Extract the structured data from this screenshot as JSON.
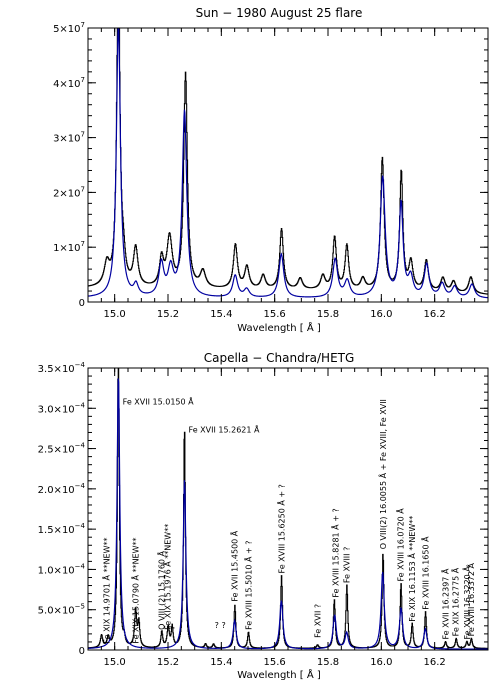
{
  "chart_data": [
    {
      "type": "line",
      "title": "Sun − 1980 August 25 flare",
      "xlabel": "Wavelength [ Å ]",
      "ylabel": "",
      "xlim": [
        14.9,
        16.4
      ],
      "ylim": [
        0,
        50000000
      ],
      "x_ticks": [
        15.0,
        15.2,
        15.4,
        15.6,
        15.8,
        16.0,
        16.2
      ],
      "x_tick_labels": [
        "15.0",
        "15.2",
        "15.4",
        "15.6",
        "15.8",
        "16.0",
        "16.2"
      ],
      "y_ticks": [
        0,
        10000000,
        20000000,
        30000000,
        40000000,
        50000000
      ],
      "y_tick_labels": [
        {
          "base": "0",
          "exp": ""
        },
        {
          "base": "1×10",
          "exp": "7"
        },
        {
          "base": "2×10",
          "exp": "7"
        },
        {
          "base": "3×10",
          "exp": "7"
        },
        {
          "base": "4×10",
          "exp": "7"
        },
        {
          "base": "5×10",
          "exp": "7"
        }
      ],
      "grid": false,
      "series": [
        {
          "color": "#000000",
          "style": "histogram",
          "baseline": [
            [
              14.9,
              2500000
            ],
            [
              15.5,
              2200000
            ],
            [
              16.1,
              2000000
            ],
            [
              16.4,
              1300000
            ]
          ],
          "peaks": [
            [
              14.97,
              4000000,
              0.012
            ],
            [
              15.013,
              60000000,
              0.007
            ],
            [
              15.032,
              4000000,
              0.008
            ],
            [
              15.078,
              7000000,
              0.01
            ],
            [
              15.175,
              5000000,
              0.009
            ],
            [
              15.205,
              9000000,
              0.012
            ],
            [
              15.265,
              39000000,
              0.008
            ],
            [
              15.33,
              3000000,
              0.012
            ],
            [
              15.452,
              8000000,
              0.009
            ],
            [
              15.495,
              4000000,
              0.01
            ],
            [
              15.556,
              2500000,
              0.01
            ],
            [
              15.625,
              11000000,
              0.008
            ],
            [
              15.695,
              2000000,
              0.01
            ],
            [
              15.78,
              2500000,
              0.01
            ],
            [
              15.824,
              9500000,
              0.008
            ],
            [
              15.87,
              8000000,
              0.008
            ],
            [
              15.93,
              2000000,
              0.01
            ],
            [
              16.003,
              24000000,
              0.008
            ],
            [
              16.074,
              21500000,
              0.007
            ],
            [
              16.11,
              5000000,
              0.009
            ],
            [
              16.168,
              5500000,
              0.009
            ],
            [
              16.23,
              2500000,
              0.01
            ],
            [
              16.27,
              2000000,
              0.01
            ],
            [
              16.335,
              3000000,
              0.01
            ]
          ]
        },
        {
          "color": "#0000a0",
          "style": "line",
          "baseline": [
            [
              14.9,
              700000
            ],
            [
              16.4,
              600000
            ]
          ],
          "peaks": [
            [
              15.014,
              50000000,
              0.009
            ],
            [
              15.08,
              2000000,
              0.01
            ],
            [
              15.175,
              6000000,
              0.011
            ],
            [
              15.21,
              5000000,
              0.012
            ],
            [
              15.262,
              34000000,
              0.01
            ],
            [
              15.452,
              4000000,
              0.011
            ],
            [
              15.495,
              1500000,
              0.012
            ],
            [
              15.625,
              8000000,
              0.011
            ],
            [
              15.827,
              7000000,
              0.011
            ],
            [
              15.872,
              3000000,
              0.012
            ],
            [
              16.005,
              22000000,
              0.011
            ],
            [
              16.074,
              17000000,
              0.009
            ],
            [
              16.11,
              3500000,
              0.011
            ],
            [
              16.17,
              6000000,
              0.011
            ],
            [
              16.228,
              2500000,
              0.012
            ],
            [
              16.275,
              2000000,
              0.012
            ],
            [
              16.34,
              2500000,
              0.012
            ]
          ]
        }
      ]
    },
    {
      "type": "line",
      "title": "Capella − Chandra/HETG",
      "xlabel": "Wavelength [ Å ]",
      "ylabel": "",
      "xlim": [
        14.9,
        16.4
      ],
      "ylim": [
        0,
        0.00035
      ],
      "x_ticks": [
        15.0,
        15.2,
        15.4,
        15.6,
        15.8,
        16.0,
        16.2
      ],
      "x_tick_labels": [
        "15.0",
        "15.2",
        "15.4",
        "15.6",
        "15.8",
        "16.0",
        "16.2"
      ],
      "y_ticks": [
        0,
        5e-05,
        0.0001,
        0.00015,
        0.0002,
        0.00025,
        0.0003,
        0.00035
      ],
      "y_tick_labels": [
        {
          "base": "0",
          "exp": ""
        },
        {
          "base": "5.0×10",
          "exp": "−5"
        },
        {
          "base": "1.0×10",
          "exp": "−4"
        },
        {
          "base": "1.5×10",
          "exp": "−4"
        },
        {
          "base": "2.0×10",
          "exp": "−4"
        },
        {
          "base": "2.5×10",
          "exp": "−4"
        },
        {
          "base": "3.0×10",
          "exp": "−4"
        },
        {
          "base": "3.5×10",
          "exp": "−4"
        }
      ],
      "grid": false,
      "series": [
        {
          "color": "#000000",
          "style": "histogram",
          "baseline": [
            [
              14.9,
              2e-06
            ],
            [
              16.4,
              2e-06
            ]
          ],
          "peaks": [
            [
              14.95,
              1.5e-05,
              0.005
            ],
            [
              14.975,
              1.2e-05,
              0.005
            ],
            [
              15.013,
              0.00037,
              0.004
            ],
            [
              15.035,
              1e-05,
              0.004
            ],
            [
              15.078,
              4.5e-05,
              0.005
            ],
            [
              15.09,
              3e-05,
              0.004
            ],
            [
              15.176,
              2e-05,
              0.004
            ],
            [
              15.2,
              2.5e-05,
              0.005
            ],
            [
              15.215,
              2.5e-05,
              0.004
            ],
            [
              15.261,
              0.000275,
              0.004
            ],
            [
              15.34,
              5e-06,
              0.004
            ],
            [
              15.37,
              5e-06,
              0.004
            ],
            [
              15.45,
              5.3e-05,
              0.004
            ],
            [
              15.501,
              2e-05,
              0.004
            ],
            [
              15.625,
              9e-05,
              0.004
            ],
            [
              15.76,
              4e-06,
              0.004
            ],
            [
              15.823,
              6e-05,
              0.004
            ],
            [
              15.87,
              7.8e-05,
              0.004
            ],
            [
              16.0055,
              0.000118,
              0.004
            ],
            [
              16.073,
              8e-05,
              0.004
            ],
            [
              16.115,
              3e-05,
              0.004
            ],
            [
              16.165,
              4.5e-05,
              0.004
            ],
            [
              16.24,
              8e-06,
              0.004
            ],
            [
              16.28,
              1.2e-05,
              0.004
            ],
            [
              16.32,
              8e-06,
              0.004
            ],
            [
              16.337,
              1.2e-05,
              0.004
            ]
          ]
        },
        {
          "color": "#0000a0",
          "style": "line",
          "baseline": [
            [
              14.9,
              1e-06
            ],
            [
              16.4,
              1e-06
            ]
          ],
          "peaks": [
            [
              15.014,
              0.00034,
              0.006
            ],
            [
              15.262,
              0.00021,
              0.006
            ],
            [
              15.45,
              3.5e-05,
              0.007
            ],
            [
              15.625,
              6e-05,
              0.007
            ],
            [
              15.825,
              4.2e-05,
              0.007
            ],
            [
              15.87,
              2e-05,
              0.007
            ],
            [
              16.005,
              9.5e-05,
              0.007
            ],
            [
              16.074,
              5e-05,
              0.007
            ],
            [
              16.165,
              2.5e-05,
              0.007
            ]
          ]
        }
      ],
      "annotations": [
        {
          "text": "Fe XVII 15.0150 Å",
          "x": 15.015,
          "y": 0.000305,
          "rotation": 0
        },
        {
          "text": "Fe XVII 15.2621 Å",
          "x": 15.262,
          "y": 0.00027,
          "rotation": 0
        },
        {
          "text": "Fe XIX 14.9701 Å **NEW**",
          "x": 14.97,
          "y": 8e-06,
          "rotation": -90
        },
        {
          "text": "Fe XIX 15.0790 Å **NEW**",
          "x": 15.079,
          "y": 8e-06,
          "rotation": -90
        },
        {
          "text": "O VIII (2) 15.1760 Å",
          "x": 15.176,
          "y": 2.5e-05,
          "rotation": -90
        },
        {
          "text": "Fe XIX 15.1976 Å **NEW**",
          "x": 15.198,
          "y": 2.5e-05,
          "rotation": -90
        },
        {
          "text": "?",
          "x": 15.214,
          "y": 2.5e-05,
          "rotation": -90
        },
        {
          "text": "? ?",
          "x": 15.36,
          "y": 2.7e-05,
          "rotation": 0
        },
        {
          "text": "Fe XVII 15.4500 Å",
          "x": 15.45,
          "y": 6e-05,
          "rotation": -90
        },
        {
          "text": "Fe XVIII 15.5010 Å + ?",
          "x": 15.501,
          "y": 2.5e-05,
          "rotation": -90
        },
        {
          "text": "Fe XVIII 15.6250 Å + ?",
          "x": 15.625,
          "y": 9.5e-05,
          "rotation": -90
        },
        {
          "text": "Fe XVII ?",
          "x": 15.76,
          "y": 1.5e-05,
          "rotation": -90
        },
        {
          "text": "Fe XVIII 15.8281 Å + ?",
          "x": 15.828,
          "y": 6.5e-05,
          "rotation": -90
        },
        {
          "text": "Fe XVIII ?",
          "x": 15.87,
          "y": 8.3e-05,
          "rotation": -90
        },
        {
          "text": "O VIII(2) 16.0055 Å + Fe XVIII, Fe XVII",
          "x": 16.0055,
          "y": 0.000125,
          "rotation": -90
        },
        {
          "text": "Fe XVIII 16.0720 Å",
          "x": 16.072,
          "y": 8.5e-05,
          "rotation": -90
        },
        {
          "text": "Fe XIX 16.1153 Å **NEW**",
          "x": 16.115,
          "y": 3.5e-05,
          "rotation": -90
        },
        {
          "text": "Fe XVIII 16.1650 Å",
          "x": 16.165,
          "y": 5e-05,
          "rotation": -90
        },
        {
          "text": "Fe XVII 16.2397 Å",
          "x": 16.24,
          "y": 1.3e-05,
          "rotation": -90
        },
        {
          "text": "Fe XIX 16.2775 Å",
          "x": 16.278,
          "y": 1.7e-05,
          "rotation": -90
        },
        {
          "text": "Fe XVIII 16.3220 Å",
          "x": 16.322,
          "y": 1.3e-05,
          "rotation": -90
        },
        {
          "text": "Fe XVIII 16.3372 Å",
          "x": 16.337,
          "y": 1.7e-05,
          "rotation": -90
        }
      ]
    }
  ]
}
